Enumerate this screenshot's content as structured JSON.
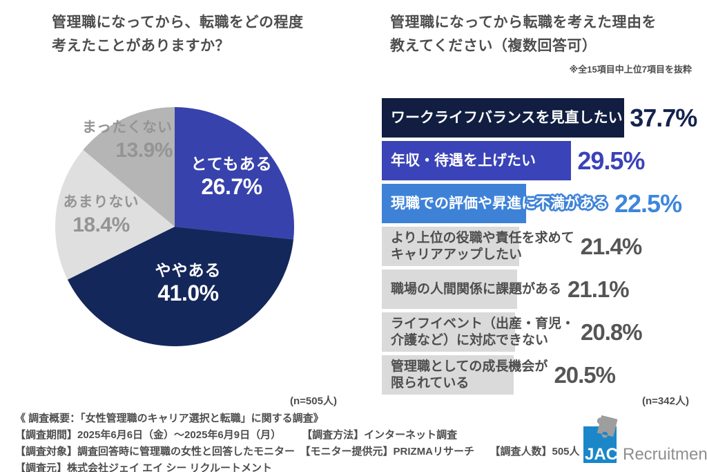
{
  "left_chart": {
    "title": "管理職になってから、転職をどの程度\n考えたことがありますか？"
  },
  "right_chart": {
    "title": "管理職になってから転職を考えた理由を\n教えてください（複数回答可）",
    "note": "※全15項目中上位7項目を抜粋"
  },
  "chart_data": [
    {
      "type": "pie",
      "title": "管理職になってから、転職をどの程度考えたことがありますか？",
      "labels": [
        "とてもある",
        "ややある",
        "あまりない",
        "まったくない"
      ],
      "values": [
        26.7,
        41.0,
        18.4,
        13.9
      ],
      "display_values": [
        "26.7%",
        "41.0%",
        "18.4%",
        "13.9%"
      ],
      "colors": [
        "#3742AC",
        "#14275A",
        "#DFDFDF",
        "#B5B5B5"
      ],
      "start_angle_deg": 0,
      "direction": "clockwise",
      "label_style": "とてもある/ややある inside white, あまりない/まったくない outside gray",
      "n_label": "(n=505人)"
    },
    {
      "type": "bar",
      "orientation": "horizontal",
      "title": "管理職になってから転職を考えた理由を教えてください（複数回答可）",
      "note": "※全15項目中上位7項目を抜粋",
      "categories": [
        "ワークライフバランスを見直したい",
        "年収・待遇を上げたい",
        "現職での評価や昇進に不満がある",
        "より上位の役職や責任を求めて\nキャリアアップしたい",
        "職場の人間関係に課題がある",
        "ライフイベント（出産・育児・\n介護など）に対応できない",
        "管理職としての成長機会が\n限られている"
      ],
      "values": [
        37.7,
        29.5,
        22.5,
        21.4,
        21.1,
        20.8,
        20.5
      ],
      "display_values": [
        "37.7%",
        "29.5%",
        "22.5%",
        "21.4%",
        "21.1%",
        "20.8%",
        "20.5%"
      ],
      "bar_colors": [
        "#111E41",
        "#3A43B7",
        "#3E82D8",
        "#DADADA",
        "#DADADA",
        "#DADADA",
        "#DADADA"
      ],
      "label_colors": [
        "#FFFFFF",
        "#FFFFFF",
        "#FFFFFF",
        "#4D4D4D",
        "#4D4D4D",
        "#4D4D4D",
        "#4D4D4D"
      ],
      "value_colors": [
        "#14234E",
        "#3A43B7",
        "#3E86DC",
        "#555555",
        "#555555",
        "#555555",
        "#555555"
      ],
      "xlim": [
        0,
        40
      ],
      "n_label": "(n=342人)"
    }
  ],
  "footer": {
    "lines": [
      "《 調査概要：「女性管理職のキャリア選択と転職」に関する調査》",
      "【調査期間】2025年6月6日（金）～2025年6月9日（月）　　　【調査方法】インターネット調査",
      "【調査対象】調査回答時に管理職の女性と回答したモニター　【モニター提供元】PRIZMAリサーチ　　【調査人数】505人",
      "【調査元】株式会社ジェイ エイ シー リクルートメント"
    ]
  },
  "logo": {
    "mark_text": "JAC",
    "brand_text": "Recruitment",
    "brand_color": "#1B87C9",
    "puzzle_color": "#9E9E9E"
  }
}
